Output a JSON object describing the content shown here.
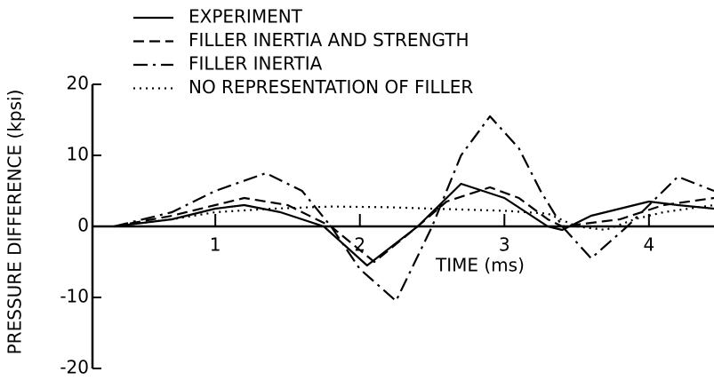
{
  "chart_data": {
    "type": "line",
    "xlabel": "TIME (ms)",
    "ylabel": "PRESSURE DIFFERENCE (kpsi)",
    "xlim": [
      0.15,
      4.45
    ],
    "xticks": [
      1,
      2,
      3,
      4
    ],
    "ylim": [
      -20,
      20
    ],
    "yticks": [
      -20,
      -10,
      0,
      10,
      20
    ],
    "grid": false,
    "legend": "top",
    "series": [
      {
        "name": "EXPERIMENT",
        "color": "#000000",
        "linestyle": "solid",
        "x": [
          0.3,
          0.7,
          1.0,
          1.2,
          1.45,
          1.75,
          2.05,
          2.4,
          2.7,
          3.0,
          3.3,
          3.4,
          3.6,
          4.0,
          4.2,
          4.45
        ],
        "values": [
          0,
          1,
          2.5,
          3,
          2,
          0,
          -5.5,
          0,
          6,
          4,
          0,
          -0.5,
          1.5,
          3.5,
          3,
          2.5
        ]
      },
      {
        "name": "FILLER INERTIA AND STRENGTH",
        "color": "#000000",
        "linestyle": "dashed",
        "x": [
          0.3,
          0.7,
          1.0,
          1.2,
          1.5,
          1.8,
          2.1,
          2.4,
          2.6,
          2.9,
          3.1,
          3.3,
          3.4,
          3.8,
          4.1,
          4.45
        ],
        "values": [
          0,
          1.5,
          3,
          4,
          3,
          0,
          -5,
          0,
          3.5,
          5.5,
          4,
          1,
          0,
          1,
          3,
          4
        ]
      },
      {
        "name": "FILLER INERTIA",
        "color": "#000000",
        "linestyle": "dashdot",
        "x": [
          0.3,
          0.7,
          1.0,
          1.35,
          1.6,
          1.8,
          2.0,
          2.25,
          2.5,
          2.7,
          2.9,
          3.1,
          3.25,
          3.4,
          3.6,
          3.85,
          4.2,
          4.45
        ],
        "values": [
          0,
          2,
          5,
          7.5,
          5,
          0,
          -6,
          -10.5,
          0,
          10,
          15.5,
          11,
          5,
          0,
          -4.5,
          0,
          7,
          5
        ]
      },
      {
        "name": "NO REPRESENTATION OF FILLER",
        "color": "#000000",
        "linestyle": "dotted",
        "x": [
          0.3,
          0.7,
          1.0,
          1.4,
          1.8,
          2.2,
          2.5,
          3.0,
          3.3,
          3.5,
          3.7,
          3.9,
          4.1,
          4.45
        ],
        "values": [
          0,
          1,
          2,
          2.5,
          2.8,
          2.7,
          2.5,
          2.2,
          1.8,
          0,
          -0.5,
          1,
          2,
          3
        ]
      }
    ]
  }
}
